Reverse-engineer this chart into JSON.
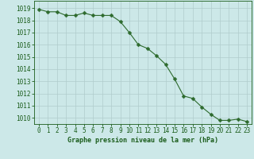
{
  "x": [
    0,
    1,
    2,
    3,
    4,
    5,
    6,
    7,
    8,
    9,
    10,
    11,
    12,
    13,
    14,
    15,
    16,
    17,
    18,
    19,
    20,
    21,
    22,
    23
  ],
  "y": [
    1018.9,
    1018.7,
    1018.7,
    1018.4,
    1018.4,
    1018.6,
    1018.4,
    1018.4,
    1018.4,
    1017.9,
    1017.0,
    1016.0,
    1015.7,
    1015.1,
    1014.4,
    1013.2,
    1011.8,
    1011.6,
    1010.9,
    1010.3,
    1009.8,
    1009.8,
    1009.9,
    1009.7
  ],
  "line_color": "#2d6a2d",
  "marker": "D",
  "marker_size": 2.5,
  "bg_color": "#cce8e8",
  "grid_color": "#b0cccc",
  "xlabel": "Graphe pression niveau de la mer (hPa)",
  "xlabel_color": "#1a5c1a",
  "tick_color": "#1a5c1a",
  "yticks": [
    1010,
    1011,
    1012,
    1013,
    1014,
    1015,
    1016,
    1017,
    1018,
    1019
  ],
  "ylim": [
    1009.5,
    1019.6
  ],
  "xlim": [
    -0.5,
    23.5
  ],
  "tick_fontsize": 5.5,
  "xlabel_fontsize": 6.0
}
